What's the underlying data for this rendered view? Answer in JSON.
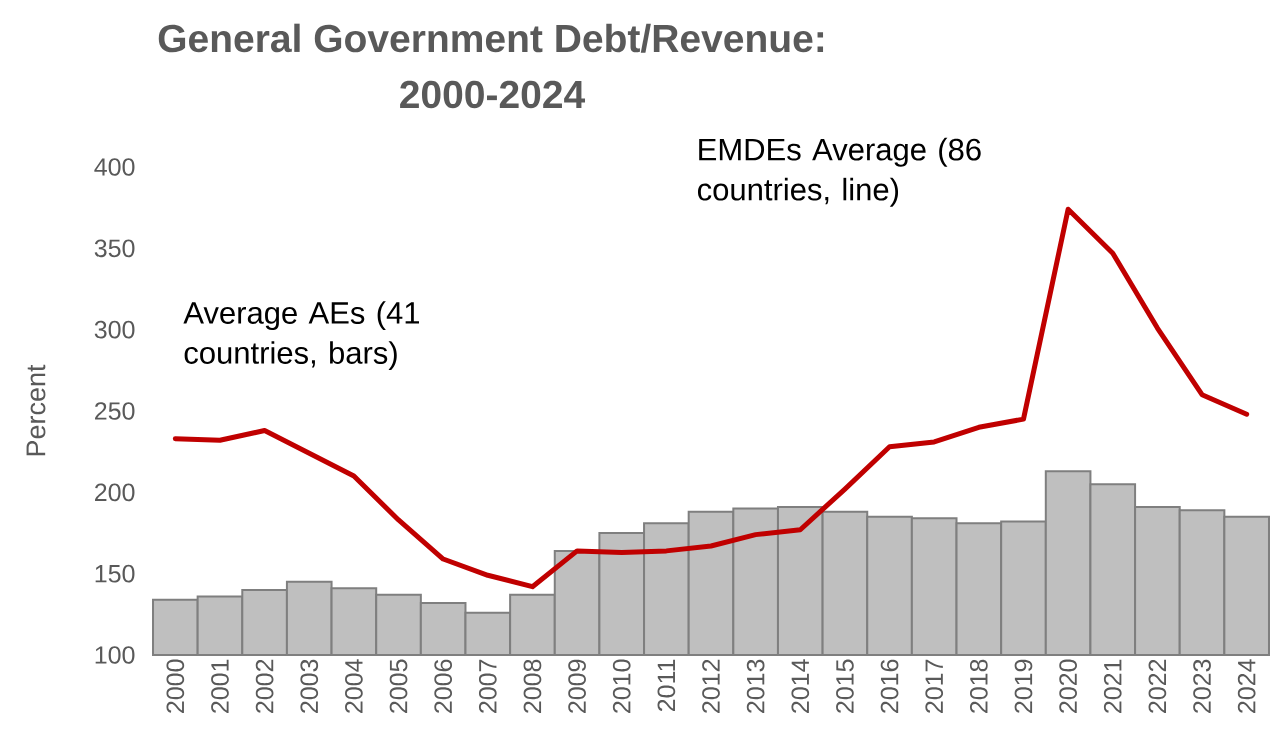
{
  "chart_data": {
    "type": "bar",
    "title": "General Government Debt/Revenue: 2000-2024",
    "ylabel": "Percent",
    "categories": [
      "2000",
      "2001",
      "2002",
      "2003",
      "2004",
      "2005",
      "2006",
      "2007",
      "2008",
      "2009",
      "2010",
      "2011",
      "2012",
      "2013",
      "2014",
      "2015",
      "2016",
      "2017",
      "2018",
      "2019",
      "2020",
      "2021",
      "2022",
      "2023",
      "2024"
    ],
    "series": [
      {
        "type": "bar",
        "color": "#bfbfbf",
        "values": [
          134,
          136,
          140,
          145,
          141,
          137,
          132,
          126,
          137,
          164,
          175,
          181,
          188,
          190,
          191,
          188,
          185,
          184,
          181,
          182,
          213,
          205,
          191,
          189,
          185
        ]
      },
      {
        "type": "line",
        "color": "#c00000",
        "values": [
          233,
          232,
          238,
          224,
          210,
          183,
          159,
          149,
          142,
          164,
          163,
          164,
          167,
          174,
          177,
          202,
          228,
          231,
          240,
          245,
          374,
          347,
          301,
          260,
          248
        ]
      }
    ],
    "annotations": [
      "Average AEs (41 countries, bars)",
      "EMDEs Average (86 countries, line)"
    ],
    "ylim": [
      100,
      400
    ],
    "yticks": [
      100,
      150,
      200,
      250,
      300,
      350,
      400
    ],
    "grid": false
  }
}
